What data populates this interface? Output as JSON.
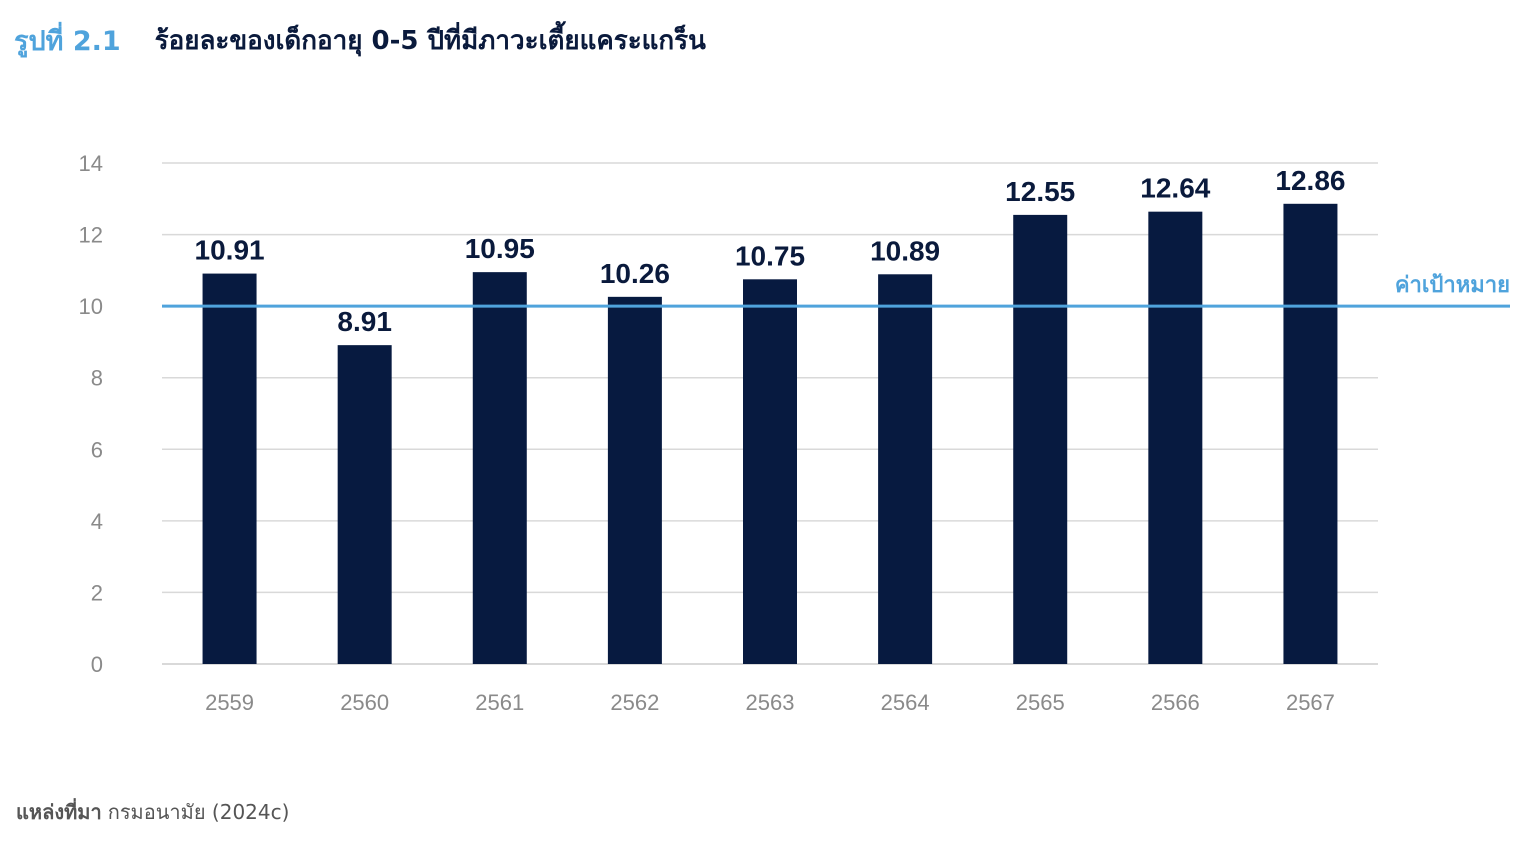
{
  "figure": {
    "label": "รูปที่ 2.1",
    "title": "ร้อยละของเด็กอายุ 0-5 ปีที่มีภาวะเตี้ยแคระแกร็น"
  },
  "source": {
    "label": "แหล่งที่มา",
    "text": "กรมอนามัย (2024c)"
  },
  "colors": {
    "bar": "#071a40",
    "target_line": "#4fa3dc",
    "grid": "#d9d9d9"
  },
  "chart_data": {
    "type": "bar",
    "categories": [
      "2559",
      "2560",
      "2561",
      "2562",
      "2563",
      "2564",
      "2565",
      "2566",
      "2567"
    ],
    "values": [
      10.91,
      8.91,
      10.95,
      10.26,
      10.75,
      10.89,
      12.55,
      12.64,
      12.86
    ],
    "data_labels": [
      "10.91",
      "8.91",
      "10.95",
      "10.26",
      "10.75",
      "10.89",
      "12.55",
      "12.64",
      "12.86"
    ],
    "ylim": [
      0,
      14
    ],
    "yticks": [
      0,
      2,
      4,
      6,
      8,
      10,
      12,
      14
    ],
    "grid": true,
    "reference_line": {
      "value": 10,
      "label": "ค่าเป้าหมาย"
    }
  }
}
